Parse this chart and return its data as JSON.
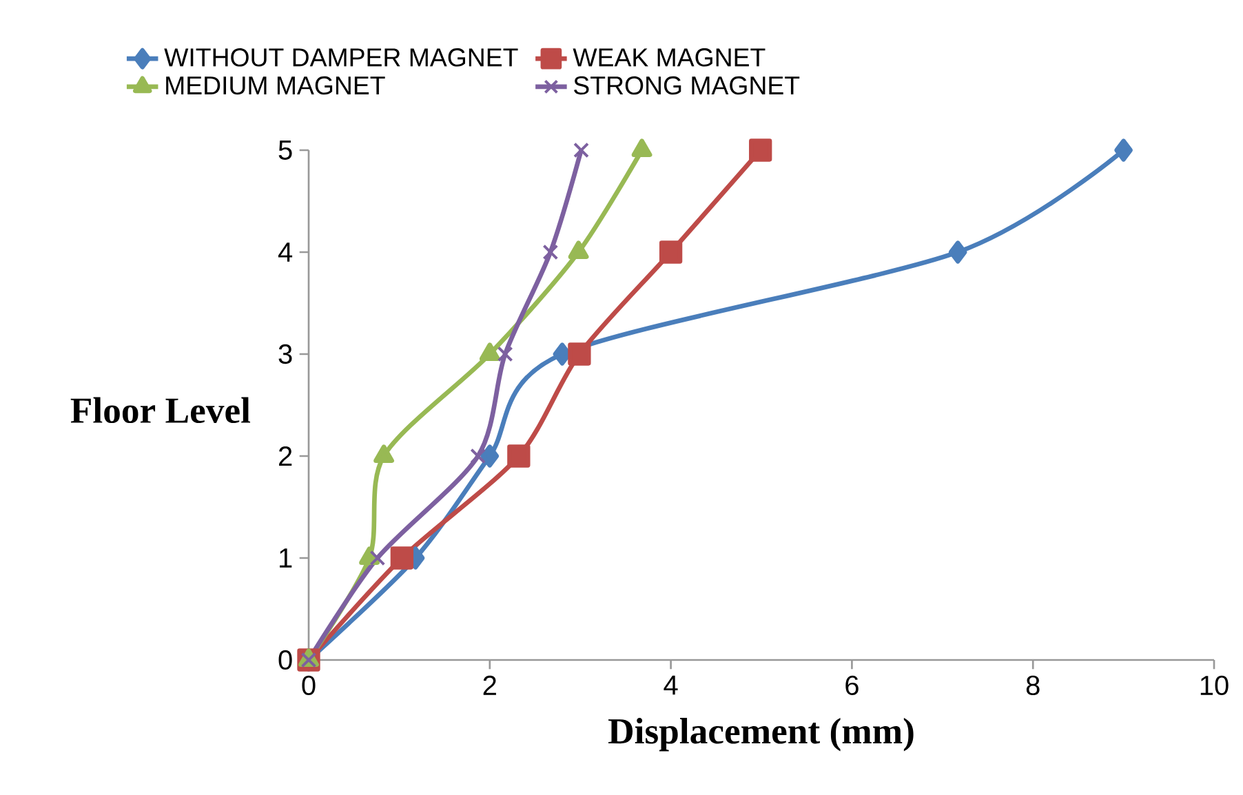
{
  "chart_data": {
    "type": "line",
    "xlabel": "Displacement (mm)",
    "ylabel": "Floor Level",
    "xlim": [
      0,
      10
    ],
    "ylim": [
      0,
      5
    ],
    "xticks": [
      0,
      2,
      4,
      6,
      8,
      10
    ],
    "yticks": [
      0,
      1,
      2,
      3,
      4,
      5
    ],
    "grid": false,
    "legend": "top",
    "line_style": "solid",
    "series": [
      {
        "name": "WITHOUT DAMPER MAGNET",
        "color": "#4a7ebb",
        "marker": "diamond",
        "x": [
          0,
          1.18,
          2.0,
          2.8,
          7.17,
          9.0
        ],
        "values": [
          0,
          1,
          2,
          3,
          4,
          5
        ]
      },
      {
        "name": "WEAK MAGNET",
        "color": "#be4b48",
        "marker": "square",
        "x": [
          0,
          1.03,
          2.32,
          2.99,
          4.0,
          4.99
        ],
        "values": [
          0,
          1,
          2,
          3,
          4,
          5
        ]
      },
      {
        "name": "MEDIUM MAGNET",
        "color": "#98b954",
        "marker": "triangle",
        "x": [
          0,
          0.67,
          0.83,
          2.0,
          2.98,
          3.68
        ],
        "values": [
          0,
          1,
          2,
          3,
          4,
          5
        ]
      },
      {
        "name": "STRONG MAGNET",
        "color": "#7d60a0",
        "marker": "cross",
        "x": [
          0,
          0.76,
          1.87,
          2.17,
          2.67,
          3.01
        ],
        "values": [
          0,
          1,
          2,
          3,
          4,
          5
        ]
      }
    ]
  }
}
